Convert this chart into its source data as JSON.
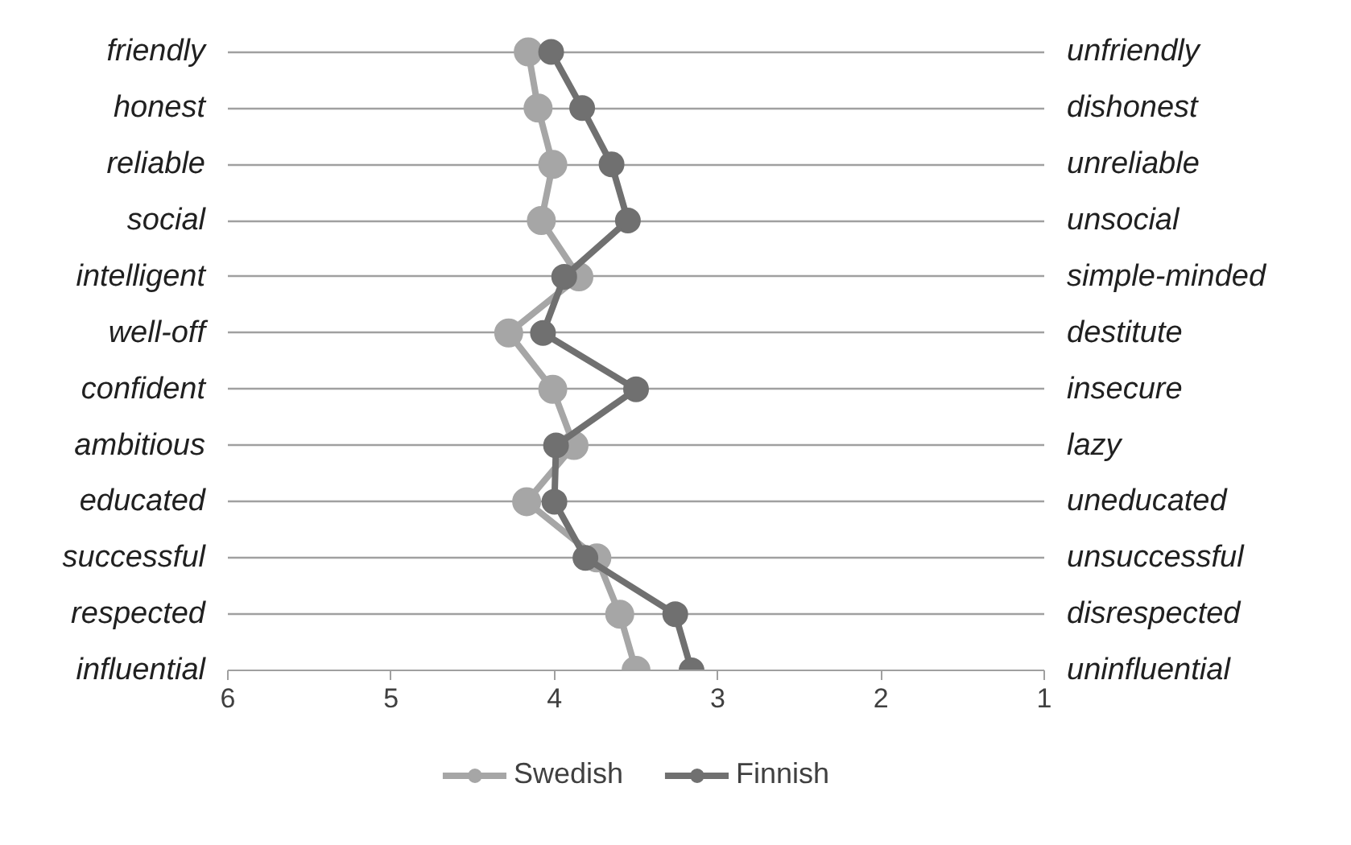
{
  "chart_data": {
    "type": "line",
    "orientation": "horizontal",
    "marker": "circle",
    "line_style": "solid",
    "grid": "y",
    "legend": "bottom",
    "categories": [
      "friendly",
      "honest",
      "reliable",
      "social",
      "intelligent",
      "well-off",
      "confident",
      "ambitious",
      "educated",
      "successful",
      "respected",
      "influential"
    ],
    "y2_categories": [
      "unfriendly",
      "dishonest",
      "unreliable",
      "unsocial",
      "simple-minded",
      "destitute",
      "insecure",
      "lazy",
      "uneducated",
      "unsuccessful",
      "disrespected",
      "uninfluential"
    ],
    "xlim": [
      6,
      1
    ],
    "xticks": [
      6,
      5,
      4,
      3,
      2,
      1
    ],
    "series": [
      {
        "name": "Swedish",
        "color": "#a6a6a6",
        "values": [
          4.16,
          4.1,
          4.01,
          4.08,
          3.85,
          4.28,
          4.01,
          3.88,
          4.17,
          3.74,
          3.6,
          3.5
        ]
      },
      {
        "name": "Finnish",
        "color": "#707070",
        "values": [
          4.02,
          3.83,
          3.65,
          3.55,
          3.94,
          4.07,
          3.5,
          3.99,
          4.0,
          3.81,
          3.26,
          3.16
        ]
      }
    ]
  }
}
